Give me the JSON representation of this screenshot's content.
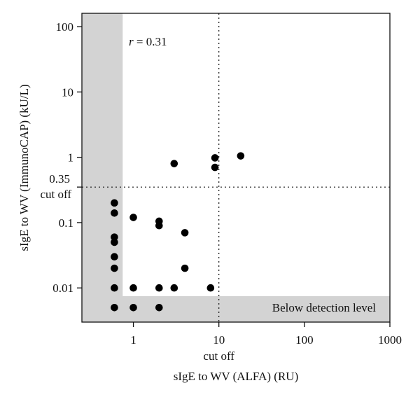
{
  "chart_data": {
    "type": "scatter",
    "title": "",
    "xlabel": "sIgE to WV (ALFA) (RU)",
    "ylabel": "sIgE to WV (ImmunoCAP) (kU/L)",
    "x_scale": "log",
    "y_scale": "log",
    "xlim": [
      0.25,
      1000
    ],
    "ylim": [
      0.003,
      160
    ],
    "x_ticks": [
      {
        "value": 1,
        "label": "1"
      },
      {
        "value": 10,
        "label": "10"
      },
      {
        "value": 100,
        "label": "100"
      },
      {
        "value": 1000,
        "label": "1000"
      }
    ],
    "y_ticks": [
      {
        "value": 0.01,
        "label": "0.01"
      },
      {
        "value": 0.1,
        "label": "0.1"
      },
      {
        "value": 1,
        "label": "1"
      },
      {
        "value": 10,
        "label": "10"
      },
      {
        "value": 100,
        "label": "100"
      }
    ],
    "cutoff": {
      "x": 10,
      "y": 0.35,
      "x_label": "cut off",
      "y_value_label": "0.35",
      "y_label": "cut off"
    },
    "detection_limit": {
      "x": 0.75,
      "y": 0.0075,
      "label": "Below detection level",
      "color": "#d3d3d3"
    },
    "annotation": "r = 0.31",
    "grid": false,
    "points": [
      {
        "x": 0.6,
        "y": 0.2
      },
      {
        "x": 0.6,
        "y": 0.14
      },
      {
        "x": 0.6,
        "y": 0.06
      },
      {
        "x": 0.6,
        "y": 0.05
      },
      {
        "x": 0.6,
        "y": 0.03
      },
      {
        "x": 0.6,
        "y": 0.02
      },
      {
        "x": 0.6,
        "y": 0.01
      },
      {
        "x": 0.6,
        "y": 0.005
      },
      {
        "x": 1,
        "y": 0.12
      },
      {
        "x": 1,
        "y": 0.01
      },
      {
        "x": 1,
        "y": 0.005
      },
      {
        "x": 2,
        "y": 0.105
      },
      {
        "x": 2,
        "y": 0.09
      },
      {
        "x": 2,
        "y": 0.01
      },
      {
        "x": 2,
        "y": 0.005
      },
      {
        "x": 3,
        "y": 0.8
      },
      {
        "x": 3,
        "y": 0.01
      },
      {
        "x": 4,
        "y": 0.07
      },
      {
        "x": 4,
        "y": 0.02
      },
      {
        "x": 8,
        "y": 0.01
      },
      {
        "x": 9,
        "y": 0.98
      },
      {
        "x": 9,
        "y": 0.7
      },
      {
        "x": 18,
        "y": 1.05
      }
    ]
  }
}
